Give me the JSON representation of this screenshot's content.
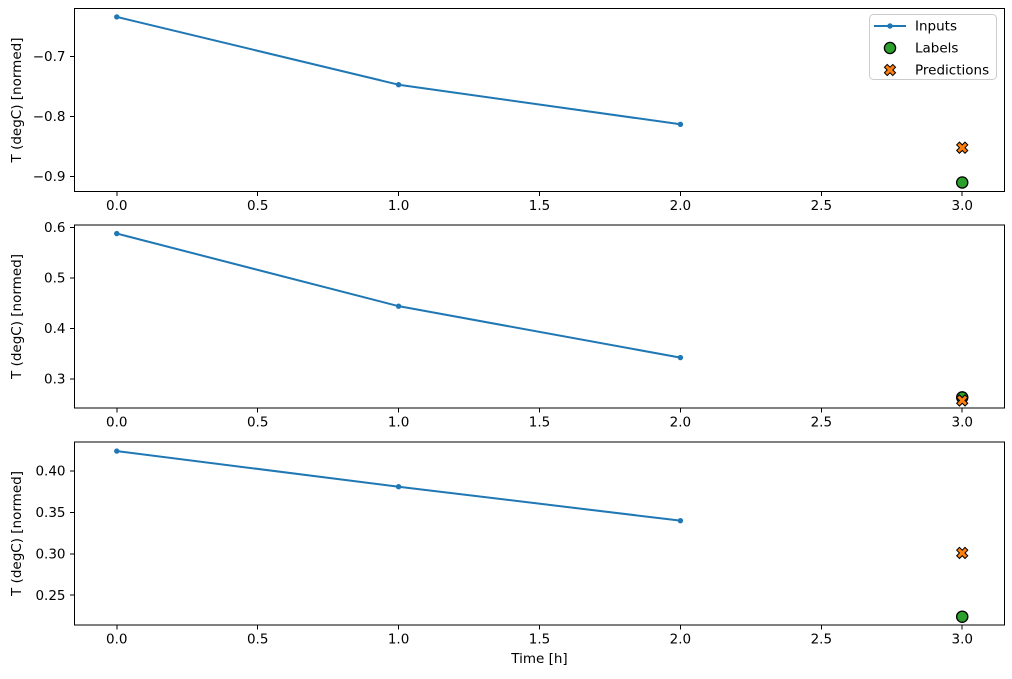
{
  "chart_data": [
    {
      "type": "line",
      "subplot": 0,
      "ylabel": "T (degC) [normed]",
      "ylim": [
        -0.925,
        -0.62
      ],
      "grid": false,
      "yticks": [
        {
          "v": -0.7,
          "label": "−0.7"
        },
        {
          "v": -0.8,
          "label": "−0.8"
        },
        {
          "v": -0.9,
          "label": "−0.9"
        }
      ],
      "series": [
        {
          "name": "Inputs",
          "type": "line",
          "marker": "point",
          "color_key": "inputs",
          "x": [
            0,
            1,
            2
          ],
          "y": [
            -0.634,
            -0.747,
            -0.813
          ]
        },
        {
          "name": "Labels",
          "type": "scatter",
          "marker": "circle",
          "color_key": "labels",
          "x": [
            3
          ],
          "y": [
            -0.91
          ]
        },
        {
          "name": "Predictions",
          "type": "scatter",
          "marker": "X",
          "color_key": "predictions",
          "x": [
            3
          ],
          "y": [
            -0.852
          ]
        }
      ],
      "show_legend": true
    },
    {
      "type": "line",
      "subplot": 1,
      "ylabel": "T (degC) [normed]",
      "ylim": [
        0.242,
        0.605
      ],
      "grid": false,
      "yticks": [
        {
          "v": 0.6,
          "label": "0.6"
        },
        {
          "v": 0.5,
          "label": "0.5"
        },
        {
          "v": 0.4,
          "label": "0.4"
        },
        {
          "v": 0.3,
          "label": "0.3"
        }
      ],
      "series": [
        {
          "name": "Inputs",
          "type": "line",
          "marker": "point",
          "color_key": "inputs",
          "x": [
            0,
            1,
            2
          ],
          "y": [
            0.588,
            0.444,
            0.342
          ]
        },
        {
          "name": "Labels",
          "type": "scatter",
          "marker": "circle",
          "color_key": "labels",
          "x": [
            3
          ],
          "y": [
            0.263
          ]
        },
        {
          "name": "Predictions",
          "type": "scatter",
          "marker": "X",
          "color_key": "predictions",
          "x": [
            3
          ],
          "y": [
            0.257
          ]
        }
      ],
      "show_legend": false
    },
    {
      "type": "line",
      "subplot": 2,
      "ylabel": "T (degC) [normed]",
      "xlabel": "Time [h]",
      "ylim": [
        0.214,
        0.435
      ],
      "grid": false,
      "yticks": [
        {
          "v": 0.4,
          "label": "0.40"
        },
        {
          "v": 0.35,
          "label": "0.35"
        },
        {
          "v": 0.3,
          "label": "0.30"
        },
        {
          "v": 0.25,
          "label": "0.25"
        }
      ],
      "series": [
        {
          "name": "Inputs",
          "type": "line",
          "marker": "point",
          "color_key": "inputs",
          "x": [
            0,
            1,
            2
          ],
          "y": [
            0.424,
            0.381,
            0.34
          ]
        },
        {
          "name": "Labels",
          "type": "scatter",
          "marker": "circle",
          "color_key": "labels",
          "x": [
            3
          ],
          "y": [
            0.224
          ]
        },
        {
          "name": "Predictions",
          "type": "scatter",
          "marker": "X",
          "color_key": "predictions",
          "x": [
            3
          ],
          "y": [
            0.301
          ]
        }
      ],
      "show_legend": false
    }
  ],
  "x_axis": {
    "xlim": [
      -0.15,
      3.15
    ],
    "ticks": [
      {
        "v": 0.0,
        "label": "0.0"
      },
      {
        "v": 0.5,
        "label": "0.5"
      },
      {
        "v": 1.0,
        "label": "1.0"
      },
      {
        "v": 1.5,
        "label": "1.5"
      },
      {
        "v": 2.0,
        "label": "2.0"
      },
      {
        "v": 2.5,
        "label": "2.5"
      },
      {
        "v": 3.0,
        "label": "3.0"
      }
    ]
  },
  "legend": {
    "position": "upper right",
    "items": [
      {
        "key": "inputs",
        "label": "Inputs"
      },
      {
        "key": "labels",
        "label": "Labels"
      },
      {
        "key": "predictions",
        "label": "Predictions"
      }
    ]
  },
  "colors": {
    "inputs": "#1f77b4",
    "labels": "#2ca02c",
    "predictions": "#ff7f0e",
    "marker_edge": "#000000",
    "spine": "#000000",
    "text": "#000000",
    "legend_border": "#cccccc",
    "legend_fill": "#ffffff",
    "background": "#ffffff"
  }
}
